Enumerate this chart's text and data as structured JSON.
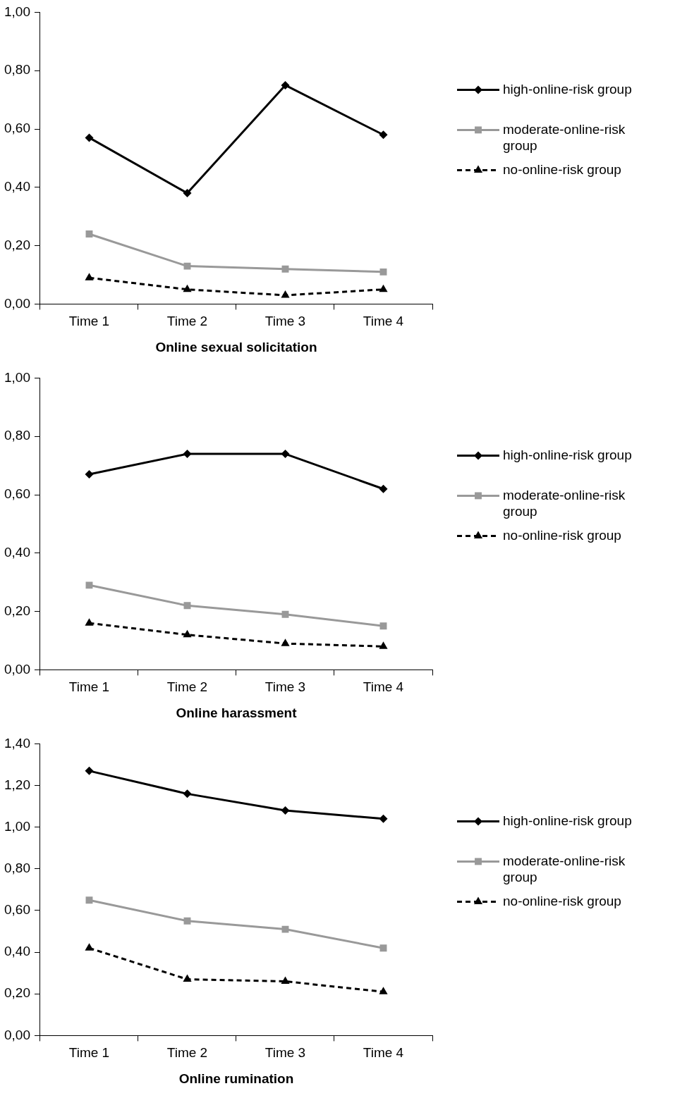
{
  "chart_data": [
    {
      "type": "line",
      "xlabel": "Online sexual solicitation",
      "categories": [
        "Time 1",
        "Time 2",
        "Time 3",
        "Time 4"
      ],
      "ylim": [
        0,
        1
      ],
      "yticks": [
        {
          "value": 0,
          "label": "0,00"
        },
        {
          "value": 0.2,
          "label": "0,20"
        },
        {
          "value": 0.4,
          "label": "0,40"
        },
        {
          "value": 0.6,
          "label": "0,60"
        },
        {
          "value": 0.8,
          "label": "0,80"
        },
        {
          "value": 1,
          "label": "1,00"
        }
      ],
      "grid": false,
      "legend": "right",
      "series": [
        {
          "name": "high-online-risk group",
          "color": "#000000",
          "marker": "diamond",
          "line_style": "solid",
          "values": [
            0.57,
            0.38,
            0.75,
            0.58
          ]
        },
        {
          "name": "moderate-online-risk group",
          "color": "#999999",
          "marker": "square",
          "line_style": "solid",
          "values": [
            0.24,
            0.13,
            0.12,
            0.11
          ]
        },
        {
          "name": "no-online-risk group",
          "color": "#000000",
          "marker": "triangle",
          "line_style": "dashed",
          "values": [
            0.09,
            0.05,
            0.03,
            0.05
          ]
        }
      ]
    },
    {
      "type": "line",
      "xlabel": "Online harassment",
      "categories": [
        "Time 1",
        "Time 2",
        "Time 3",
        "Time 4"
      ],
      "ylim": [
        0,
        1
      ],
      "yticks": [
        {
          "value": 0,
          "label": "0,00"
        },
        {
          "value": 0.2,
          "label": "0,20"
        },
        {
          "value": 0.4,
          "label": "0,40"
        },
        {
          "value": 0.6,
          "label": "0,60"
        },
        {
          "value": 0.8,
          "label": "0,80"
        },
        {
          "value": 1,
          "label": "1,00"
        }
      ],
      "grid": false,
      "legend": "right",
      "series": [
        {
          "name": "high-online-risk group",
          "color": "#000000",
          "marker": "diamond",
          "line_style": "solid",
          "values": [
            0.67,
            0.74,
            0.74,
            0.62
          ]
        },
        {
          "name": "moderate-online-risk group",
          "color": "#999999",
          "marker": "square",
          "line_style": "solid",
          "values": [
            0.29,
            0.22,
            0.19,
            0.15
          ]
        },
        {
          "name": "no-online-risk group",
          "color": "#000000",
          "marker": "triangle",
          "line_style": "dashed",
          "values": [
            0.16,
            0.12,
            0.09,
            0.08
          ]
        }
      ]
    },
    {
      "type": "line",
      "xlabel": "Online rumination",
      "categories": [
        "Time 1",
        "Time 2",
        "Time 3",
        "Time 4"
      ],
      "ylim": [
        0,
        1.4
      ],
      "yticks": [
        {
          "value": 0,
          "label": "0,00"
        },
        {
          "value": 0.2,
          "label": "0,20"
        },
        {
          "value": 0.4,
          "label": "0,40"
        },
        {
          "value": 0.6,
          "label": "0,60"
        },
        {
          "value": 0.8,
          "label": "0,80"
        },
        {
          "value": 1,
          "label": "1,00"
        },
        {
          "value": 1.2,
          "label": "1,20"
        },
        {
          "value": 1.4,
          "label": "1,40"
        }
      ],
      "grid": false,
      "legend": "right",
      "series": [
        {
          "name": "high-online-risk group",
          "color": "#000000",
          "marker": "diamond",
          "line_style": "solid",
          "values": [
            1.27,
            1.16,
            1.08,
            1.04
          ]
        },
        {
          "name": "moderate-online-risk group",
          "color": "#999999",
          "marker": "square",
          "line_style": "solid",
          "values": [
            0.65,
            0.55,
            0.51,
            0.42
          ]
        },
        {
          "name": "no-online-risk group",
          "color": "#000000",
          "marker": "triangle",
          "line_style": "dashed",
          "values": [
            0.42,
            0.27,
            0.26,
            0.21
          ]
        }
      ]
    }
  ]
}
